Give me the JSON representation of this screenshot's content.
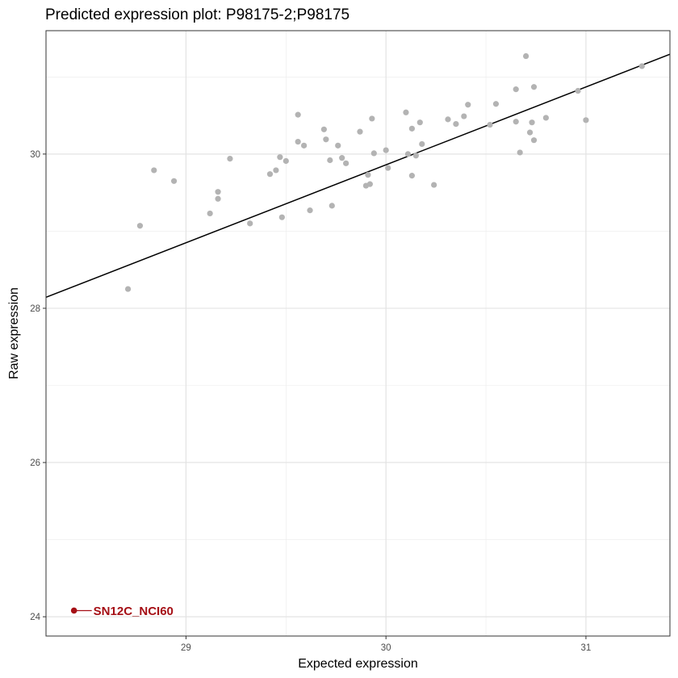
{
  "chart_data": {
    "type": "scatter",
    "title": "Predicted expression plot: P98175-2;P98175",
    "xlabel": "Expected  expression",
    "ylabel": "Raw  expression",
    "xlim": [
      28.3,
      31.42
    ],
    "ylim": [
      23.75,
      31.6
    ],
    "xticks": [
      29,
      30,
      31
    ],
    "yticks": [
      24,
      26,
      28,
      30
    ],
    "grid": true,
    "point_color": "#b3b3b3",
    "highlight_color": "#a50f15",
    "fit_line": {
      "color": "#000000",
      "slope": 1.01,
      "intercept": -0.44
    },
    "points": [
      {
        "x": 28.71,
        "y": 28.25
      },
      {
        "x": 28.77,
        "y": 29.07
      },
      {
        "x": 28.84,
        "y": 29.79
      },
      {
        "x": 28.94,
        "y": 29.65
      },
      {
        "x": 29.12,
        "y": 29.23
      },
      {
        "x": 29.16,
        "y": 29.42
      },
      {
        "x": 29.16,
        "y": 29.51
      },
      {
        "x": 29.22,
        "y": 29.94
      },
      {
        "x": 29.32,
        "y": 29.1
      },
      {
        "x": 29.42,
        "y": 29.74
      },
      {
        "x": 29.45,
        "y": 29.79
      },
      {
        "x": 29.47,
        "y": 29.96
      },
      {
        "x": 29.48,
        "y": 29.18
      },
      {
        "x": 29.5,
        "y": 29.91
      },
      {
        "x": 29.56,
        "y": 30.51
      },
      {
        "x": 29.56,
        "y": 30.16
      },
      {
        "x": 29.59,
        "y": 30.11
      },
      {
        "x": 29.62,
        "y": 29.27
      },
      {
        "x": 29.69,
        "y": 30.32
      },
      {
        "x": 29.7,
        "y": 30.19
      },
      {
        "x": 29.72,
        "y": 29.92
      },
      {
        "x": 29.73,
        "y": 29.33
      },
      {
        "x": 29.76,
        "y": 30.11
      },
      {
        "x": 29.78,
        "y": 29.95
      },
      {
        "x": 29.8,
        "y": 29.88
      },
      {
        "x": 29.87,
        "y": 30.29
      },
      {
        "x": 29.9,
        "y": 29.59
      },
      {
        "x": 29.91,
        "y": 29.73
      },
      {
        "x": 29.92,
        "y": 29.61
      },
      {
        "x": 29.93,
        "y": 30.46
      },
      {
        "x": 29.94,
        "y": 30.01
      },
      {
        "x": 30.0,
        "y": 30.05
      },
      {
        "x": 30.01,
        "y": 29.82
      },
      {
        "x": 30.1,
        "y": 30.54
      },
      {
        "x": 30.11,
        "y": 30.0
      },
      {
        "x": 30.13,
        "y": 30.33
      },
      {
        "x": 30.13,
        "y": 29.72
      },
      {
        "x": 30.15,
        "y": 29.98
      },
      {
        "x": 30.17,
        "y": 30.41
      },
      {
        "x": 30.18,
        "y": 30.13
      },
      {
        "x": 30.24,
        "y": 29.6
      },
      {
        "x": 30.31,
        "y": 30.45
      },
      {
        "x": 30.35,
        "y": 30.39
      },
      {
        "x": 30.39,
        "y": 30.49
      },
      {
        "x": 30.41,
        "y": 30.64
      },
      {
        "x": 30.52,
        "y": 30.38
      },
      {
        "x": 30.55,
        "y": 30.65
      },
      {
        "x": 30.65,
        "y": 30.84
      },
      {
        "x": 30.65,
        "y": 30.42
      },
      {
        "x": 30.67,
        "y": 30.02
      },
      {
        "x": 30.7,
        "y": 31.27
      },
      {
        "x": 30.72,
        "y": 30.28
      },
      {
        "x": 30.73,
        "y": 30.41
      },
      {
        "x": 30.74,
        "y": 30.87
      },
      {
        "x": 30.74,
        "y": 30.18
      },
      {
        "x": 30.8,
        "y": 30.47
      },
      {
        "x": 30.96,
        "y": 30.82
      },
      {
        "x": 31.0,
        "y": 30.44
      },
      {
        "x": 31.28,
        "y": 31.14
      }
    ],
    "highlight": {
      "label": "SN12C_NCI60",
      "x": 28.44,
      "y": 24.08
    }
  }
}
